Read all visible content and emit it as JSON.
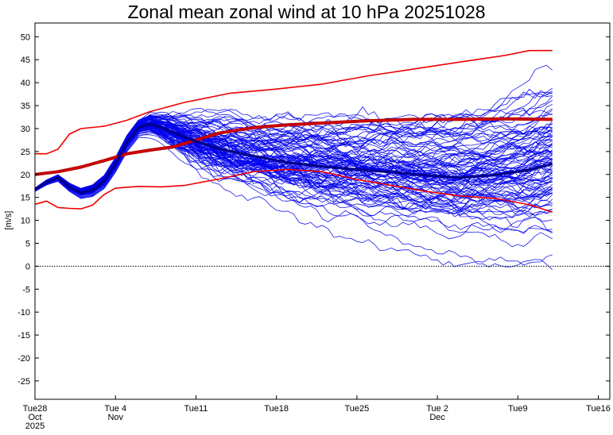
{
  "chart_data": {
    "type": "line",
    "title": "Zonal mean zonal wind at 10 hPa 20251028",
    "ylabel": "[m/s]",
    "xlabel": "",
    "ylim": [
      -29,
      53
    ],
    "xlim": [
      "2025-10-28",
      "2025-12-17"
    ],
    "y_ticks": [
      50,
      45,
      40,
      35,
      30,
      25,
      20,
      15,
      10,
      5,
      0,
      -5,
      -10,
      -15,
      -20,
      -25
    ],
    "x_ticks": [
      {
        "date": "2025-10-28",
        "lines": [
          "Tue28",
          "Oct",
          "2025"
        ]
      },
      {
        "date": "2025-11-04",
        "lines": [
          "Tue 4",
          "Nov"
        ]
      },
      {
        "date": "2025-11-11",
        "lines": [
          "Tue11"
        ]
      },
      {
        "date": "2025-11-18",
        "lines": [
          "Tue18"
        ]
      },
      {
        "date": "2025-11-25",
        "lines": [
          "Tue25"
        ]
      },
      {
        "date": "2025-12-02",
        "lines": [
          "Tue 2",
          "Dec"
        ]
      },
      {
        "date": "2025-12-09",
        "lines": [
          "Tue9"
        ]
      },
      {
        "date": "2025-12-16",
        "lines": [
          "Tue16"
        ]
      }
    ],
    "zero_line": {
      "y": 0,
      "style": "dotted"
    },
    "grid": false,
    "colors": {
      "ensemble": "#0000ee",
      "ensemble_mean": "#00008b",
      "climatology": "#ee0000",
      "climatology_mean": "#8b0000"
    },
    "ensemble_members": 100,
    "ensemble_spread_note": "",
    "series": [
      {
        "role": "climatology_max",
        "color": "#ee0000",
        "x": [
          "2025-10-28",
          "2025-10-29",
          "2025-10-30",
          "2025-10-31",
          "2025-11-01",
          "2025-11-03",
          "2025-11-05",
          "2025-11-07",
          "2025-11-10",
          "2025-11-14",
          "2025-11-18",
          "2025-11-22",
          "2025-11-26",
          "2025-11-30",
          "2025-12-04",
          "2025-12-08",
          "2025-12-10",
          "2025-12-12"
        ],
        "values": [
          24.5,
          24.5,
          25.5,
          28.8,
          30,
          30.5,
          31.8,
          33.7,
          35.7,
          37.7,
          38.6,
          39.7,
          41.5,
          43,
          44.5,
          46,
          47,
          47
        ]
      },
      {
        "role": "climatology_mean",
        "color": "#cc0000",
        "x": [
          "2025-10-28",
          "2025-10-30",
          "2025-11-01",
          "2025-11-03",
          "2025-11-05",
          "2025-11-07",
          "2025-11-09",
          "2025-11-11",
          "2025-11-13",
          "2025-11-16",
          "2025-11-19",
          "2025-11-22",
          "2025-11-26",
          "2025-11-30",
          "2025-12-04",
          "2025-12-08",
          "2025-12-12"
        ],
        "values": [
          20,
          20.6,
          21.6,
          23,
          24.5,
          25.3,
          26,
          27.5,
          29,
          30.2,
          30.8,
          31.2,
          31.7,
          32,
          32,
          32.1,
          32
        ]
      },
      {
        "role": "climatology_min",
        "color": "#ee0000",
        "x": [
          "2025-10-28",
          "2025-10-29",
          "2025-10-30",
          "2025-10-31",
          "2025-11-01",
          "2025-11-02",
          "2025-11-03",
          "2025-11-04",
          "2025-11-06",
          "2025-11-08",
          "2025-11-10",
          "2025-11-13",
          "2025-11-16",
          "2025-11-19",
          "2025-11-22",
          "2025-11-25",
          "2025-11-28",
          "2025-12-01",
          "2025-12-04",
          "2025-12-07",
          "2025-12-10",
          "2025-12-12"
        ],
        "values": [
          13.5,
          14.2,
          12.8,
          12.6,
          12.5,
          13.3,
          15.6,
          17,
          17.4,
          17.3,
          17.6,
          19,
          20.6,
          21.1,
          20.6,
          18.9,
          17.6,
          16.3,
          15.3,
          14.8,
          13.4,
          11.8
        ]
      },
      {
        "role": "ensemble_mean",
        "color": "#00008b",
        "x": [
          "2025-10-28",
          "2025-10-29",
          "2025-10-30",
          "2025-10-31",
          "2025-11-01",
          "2025-11-02",
          "2025-11-03",
          "2025-11-04",
          "2025-11-05",
          "2025-11-06",
          "2025-11-07",
          "2025-11-08",
          "2025-11-09",
          "2025-11-11",
          "2025-11-13",
          "2025-11-16",
          "2025-11-19",
          "2025-11-22",
          "2025-11-25",
          "2025-11-28",
          "2025-12-01",
          "2025-12-04",
          "2025-12-07",
          "2025-12-10",
          "2025-12-12"
        ],
        "values": [
          16.7,
          18.3,
          19.3,
          17.3,
          16,
          16.6,
          18.5,
          22.3,
          27,
          30.2,
          31,
          30.2,
          29.2,
          27.2,
          25.6,
          24,
          22.6,
          21.7,
          21.1,
          20.5,
          19.8,
          19.3,
          19.9,
          21,
          22.3
        ]
      }
    ]
  }
}
